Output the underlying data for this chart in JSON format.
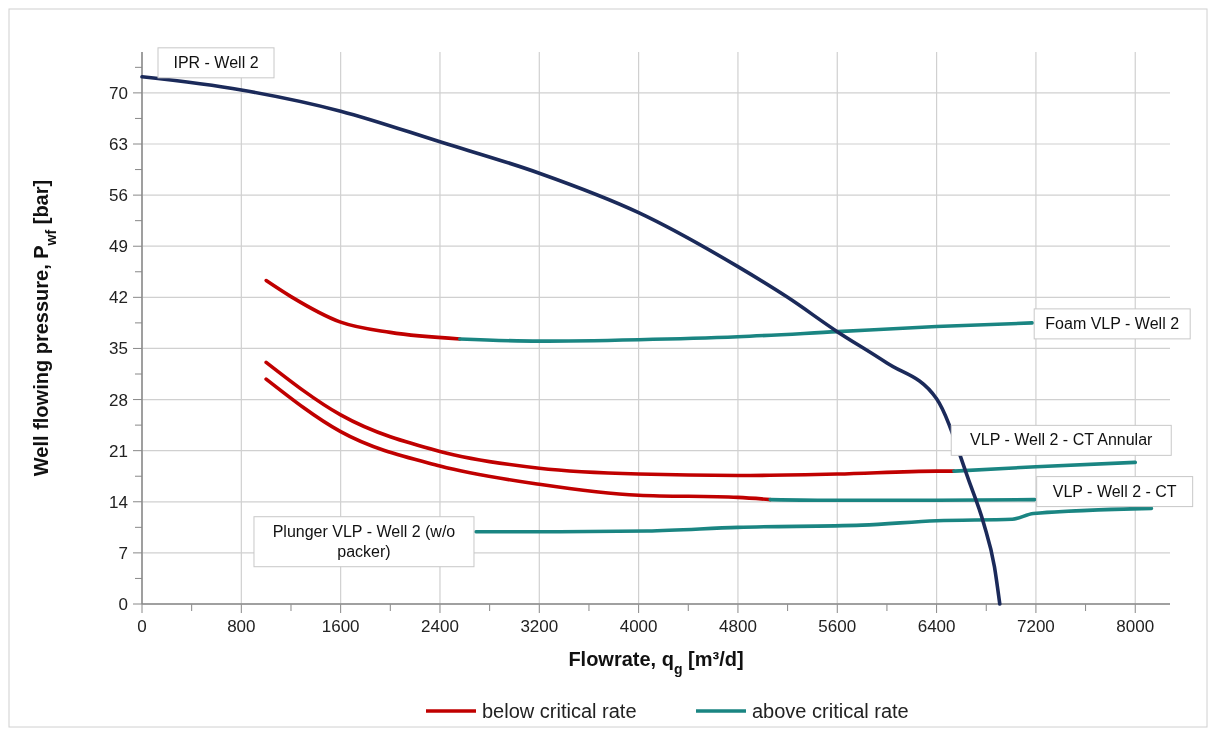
{
  "chart_data": {
    "type": "line",
    "xlabel": "Flowrate, q$_{g}$  [m³/d]",
    "ylabel": "Well flowing pressure, P$_{wf}$ [bar]",
    "xlim": [
      0,
      8280
    ],
    "ylim": [
      0,
      75.6
    ],
    "xticks": [
      0,
      {
        "value": 400,
        "label": null
      },
      800,
      {
        "value": 1200,
        "label": null
      },
      1600,
      {
        "value": 2000,
        "label": null
      },
      2400,
      {
        "value": 2800,
        "label": null
      },
      3200,
      {
        "value": 3600,
        "label": null
      },
      4000,
      {
        "value": 4400,
        "label": null
      },
      4800,
      {
        "value": 5200,
        "label": null
      },
      5600,
      {
        "value": 6000,
        "label": null
      },
      6400,
      {
        "value": 6800,
        "label": null
      },
      7200,
      {
        "value": 7600,
        "label": null
      },
      8000
    ],
    "yticks": [
      0,
      {
        "value": 3.5,
        "label": null
      },
      7,
      {
        "value": 10.5,
        "label": null
      },
      14,
      {
        "value": 17.5,
        "label": null
      },
      21,
      {
        "value": 24.5,
        "label": null
      },
      28,
      {
        "value": 31.5,
        "label": null
      },
      35,
      {
        "value": 38.5,
        "label": null
      },
      42,
      {
        "value": 45.5,
        "label": null
      },
      49,
      {
        "value": 52.5,
        "label": null
      },
      56,
      {
        "value": 59.5,
        "label": null
      },
      63,
      {
        "value": 66.5,
        "label": null
      },
      70,
      {
        "value": 73.5,
        "label": null
      }
    ],
    "grid": true,
    "legend": "bottom",
    "marker": "none",
    "line_style": "solid",
    "series": [
      {
        "name": "below critical rate",
        "color": "#c00000",
        "x": [
          1000,
          1200,
          1600,
          2000,
          2560
        ],
        "values": [
          44.3,
          42.1,
          38.6,
          37.2,
          36.3
        ]
      },
      {
        "name": "above critical rate",
        "color": "#1a8582",
        "x": [
          2560,
          3200,
          4000,
          4800,
          5600,
          6400,
          7170
        ],
        "values": [
          36.3,
          36.0,
          36.2,
          36.6,
          37.3,
          38.0,
          38.5
        ]
      },
      {
        "color": "#c00000",
        "x": [
          1000,
          1600,
          2400,
          3200,
          4000,
          4800,
          5600,
          6400,
          6540
        ],
        "values": [
          33.1,
          25.9,
          20.9,
          18.6,
          17.8,
          17.6,
          17.8,
          18.2,
          18.2
        ]
      },
      {
        "color": "#1a8582",
        "x": [
          6540,
          7200,
          8000
        ],
        "values": [
          18.2,
          18.8,
          19.4
        ]
      },
      {
        "color": "#c00000",
        "x": [
          1000,
          1600,
          2400,
          3200,
          4000,
          4800,
          5060
        ],
        "values": [
          30.8,
          23.6,
          18.9,
          16.4,
          14.9,
          14.6,
          14.3
        ]
      },
      {
        "color": "#1a8582",
        "x": [
          5060,
          5600,
          6400,
          7190
        ],
        "values": [
          14.3,
          14.2,
          14.2,
          14.3
        ]
      },
      {
        "color": "#1a8582",
        "x": [
          2690,
          3200,
          4070,
          4800,
          5800,
          6400,
          7010,
          7180,
          8130
        ],
        "values": [
          9.9,
          9.9,
          10.0,
          10.5,
          10.8,
          11.4,
          11.6,
          12.4,
          13.1
        ]
      },
      {
        "color": "#1b2a5a",
        "x": [
          0,
          800,
          1600,
          2400,
          3200,
          4000,
          4800,
          5200,
          5600,
          6000,
          6400,
          6660,
          6780,
          6866,
          6909
        ],
        "values": [
          72.2,
          70.4,
          67.5,
          63.3,
          59.0,
          53.6,
          46.2,
          42.0,
          37.3,
          33.0,
          28.1,
          16.9,
          11.0,
          5.1,
          0
        ]
      }
    ],
    "annotations": [
      "IPR - Well 2",
      "Foam VLP - Well 2",
      "VLP - Well 2 - CT Annular",
      "VLP - Well 2 - CT",
      "Plunger VLP - Well 2 (w/o packer)"
    ]
  }
}
